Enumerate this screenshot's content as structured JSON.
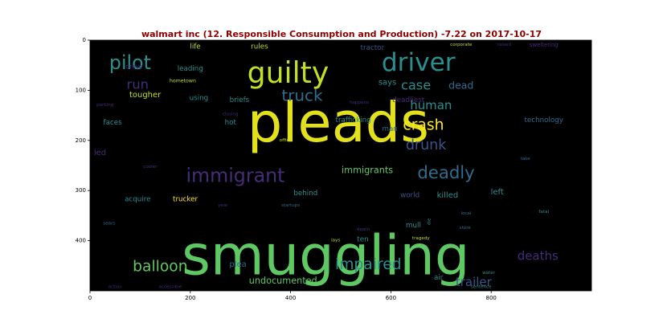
{
  "chart_data": {
    "type": "wordcloud",
    "title": "walmart inc (12. Responsible Consumption and Production) -7.22 on 2017-10-17",
    "background": "#000000",
    "title_color": "#8b0000",
    "xlim": [
      0,
      1000
    ],
    "ylim": [
      500,
      0
    ],
    "x_ticks": [
      "0",
      "200",
      "400",
      "600",
      "800"
    ],
    "y_ticks": [
      "0",
      "100",
      "200",
      "300",
      "400"
    ],
    "words": [
      {
        "text": "pleads",
        "x": 495,
        "y": 165,
        "size": 110,
        "color": "#e3e11b"
      },
      {
        "text": "smuggling",
        "x": 470,
        "y": 430,
        "size": 110,
        "color": "#5ec962"
      },
      {
        "text": "guilty",
        "x": 395,
        "y": 65,
        "size": 58,
        "color": "#c2df23"
      },
      {
        "text": "driver",
        "x": 655,
        "y": 45,
        "size": 50,
        "color": "#2a8f8e"
      },
      {
        "text": "pilot",
        "x": 80,
        "y": 45,
        "size": 38,
        "color": "#2a8f8e"
      },
      {
        "text": "run",
        "x": 95,
        "y": 88,
        "size": 26,
        "color": "#472c7a"
      },
      {
        "text": "truck",
        "x": 423,
        "y": 110,
        "size": 32,
        "color": "#2f6c8e"
      },
      {
        "text": "case",
        "x": 650,
        "y": 90,
        "size": 26,
        "color": "#2a8f8e"
      },
      {
        "text": "dead",
        "x": 740,
        "y": 90,
        "size": 20,
        "color": "#2f6c8e"
      },
      {
        "text": "human",
        "x": 680,
        "y": 130,
        "size": 24,
        "color": "#2a8f8e"
      },
      {
        "text": "crash",
        "x": 665,
        "y": 170,
        "size": 30,
        "color": "#fde725"
      },
      {
        "text": "drunk",
        "x": 670,
        "y": 210,
        "size": 28,
        "color": "#3a538b"
      },
      {
        "text": "immigrant",
        "x": 290,
        "y": 270,
        "size": 38,
        "color": "#472c7a"
      },
      {
        "text": "immigrants",
        "x": 553,
        "y": 260,
        "size": 18,
        "color": "#5ec962"
      },
      {
        "text": "deadly",
        "x": 710,
        "y": 265,
        "size": 34,
        "color": "#2f6c8e"
      },
      {
        "text": "balloon",
        "x": 140,
        "y": 452,
        "size": 30,
        "color": "#5ec962"
      },
      {
        "text": "impaired",
        "x": 555,
        "y": 448,
        "size": 30,
        "color": "#2a8f8e"
      },
      {
        "text": "undocumented",
        "x": 385,
        "y": 480,
        "size": 18,
        "color": "#5ec962"
      },
      {
        "text": "trailer",
        "x": 765,
        "y": 482,
        "size": 24,
        "color": "#3a538b"
      },
      {
        "text": "deaths",
        "x": 893,
        "y": 430,
        "size": 24,
        "color": "#472c7a"
      },
      {
        "text": "plea",
        "x": 295,
        "y": 448,
        "size": 16,
        "color": "#2f6c8e"
      },
      {
        "text": "air",
        "x": 695,
        "y": 474,
        "size": 14,
        "color": "#2a8f8e"
      },
      {
        "text": "life",
        "x": 210,
        "y": 14,
        "size": 14,
        "color": "#c2df23"
      },
      {
        "text": "rules",
        "x": 338,
        "y": 14,
        "size": 14,
        "color": "#c2df23"
      },
      {
        "text": "tractor",
        "x": 563,
        "y": 16,
        "size": 14,
        "color": "#3a538b"
      },
      {
        "text": "corporate",
        "x": 740,
        "y": 10,
        "size": 9,
        "color": "#c2df23"
      },
      {
        "text": "raised",
        "x": 826,
        "y": 10,
        "size": 9,
        "color": "#472c7a"
      },
      {
        "text": "sweltering",
        "x": 905,
        "y": 10,
        "size": 11,
        "color": "#472c7a"
      },
      {
        "text": "drove",
        "x": 88,
        "y": 53,
        "size": 12,
        "color": "#472c7a"
      },
      {
        "text": "leading",
        "x": 200,
        "y": 58,
        "size": 14,
        "color": "#2a8f8e"
      },
      {
        "text": "hometown",
        "x": 185,
        "y": 82,
        "size": 10,
        "color": "#c2df23"
      },
      {
        "text": "says",
        "x": 593,
        "y": 85,
        "size": 16,
        "color": "#2a8f8e"
      },
      {
        "text": "tougher",
        "x": 110,
        "y": 110,
        "size": 16,
        "color": "#c2df23"
      },
      {
        "text": "using",
        "x": 217,
        "y": 116,
        "size": 14,
        "color": "#2a8f8e"
      },
      {
        "text": "briefs",
        "x": 298,
        "y": 120,
        "size": 14,
        "color": "#2a8f8e"
      },
      {
        "text": "parking",
        "x": 30,
        "y": 130,
        "size": 9,
        "color": "#472c7a"
      },
      {
        "text": "closing",
        "x": 280,
        "y": 148,
        "size": 9,
        "color": "#472c7a"
      },
      {
        "text": "happens",
        "x": 537,
        "y": 125,
        "size": 9,
        "color": "#472c7a"
      },
      {
        "text": "deadliest",
        "x": 635,
        "y": 120,
        "size": 14,
        "color": "#472c7a"
      },
      {
        "text": "trafficking",
        "x": 525,
        "y": 160,
        "size": 14,
        "color": "#2a8f8e"
      },
      {
        "text": "technology",
        "x": 905,
        "y": 160,
        "size": 14,
        "color": "#2f6c8e"
      },
      {
        "text": "faces",
        "x": 45,
        "y": 165,
        "size": 14,
        "color": "#2a8f8e"
      },
      {
        "text": "hot",
        "x": 280,
        "y": 165,
        "size": 14,
        "color": "#2a8f8e"
      },
      {
        "text": "man",
        "x": 598,
        "y": 178,
        "size": 14,
        "color": "#2f6c8e"
      },
      {
        "text": "office",
        "x": 390,
        "y": 200,
        "size": 9,
        "color": "#c2df23"
      },
      {
        "text": "led",
        "x": 20,
        "y": 225,
        "size": 16,
        "color": "#472c7a"
      },
      {
        "text": "take",
        "x": 868,
        "y": 237,
        "size": 9,
        "color": "#2f6c8e"
      },
      {
        "text": "cooler",
        "x": 120,
        "y": 253,
        "size": 9,
        "color": "#472c7a"
      },
      {
        "text": "acquire",
        "x": 95,
        "y": 318,
        "size": 14,
        "color": "#2a8f8e"
      },
      {
        "text": "trucker",
        "x": 190,
        "y": 318,
        "size": 14,
        "color": "#fde725"
      },
      {
        "text": "behind",
        "x": 430,
        "y": 306,
        "size": 14,
        "color": "#2a8f8e"
      },
      {
        "text": "startups",
        "x": 400,
        "y": 330,
        "size": 9,
        "color": "#2f6c8e"
      },
      {
        "text": "world",
        "x": 638,
        "y": 310,
        "size": 14,
        "color": "#3a538b"
      },
      {
        "text": "killed",
        "x": 713,
        "y": 310,
        "size": 16,
        "color": "#2a8f8e"
      },
      {
        "text": "left",
        "x": 812,
        "y": 304,
        "size": 16,
        "color": "#2a8f8e"
      },
      {
        "text": "fatal",
        "x": 905,
        "y": 343,
        "size": 9,
        "color": "#2a8f8e"
      },
      {
        "text": "year",
        "x": 265,
        "y": 330,
        "size": 9,
        "color": "#472c7a"
      },
      {
        "text": "local",
        "x": 750,
        "y": 346,
        "size": 9,
        "color": "#2f6c8e"
      },
      {
        "text": "sears",
        "x": 38,
        "y": 366,
        "size": 9,
        "color": "#2f6c8e"
      },
      {
        "text": "mull",
        "x": 645,
        "y": 370,
        "size": 14,
        "color": "#2a8f8e"
      },
      {
        "text": "die",
        "x": 677,
        "y": 362,
        "size": 9,
        "color": "#2a8f8e",
        "rotate": true
      },
      {
        "text": "store",
        "x": 748,
        "y": 375,
        "size": 9,
        "color": "#2f6c8e"
      },
      {
        "text": "death",
        "x": 545,
        "y": 378,
        "size": 9,
        "color": "#472c7a"
      },
      {
        "text": "ten",
        "x": 544,
        "y": 398,
        "size": 14,
        "color": "#2a8f8e"
      },
      {
        "text": "lays",
        "x": 490,
        "y": 400,
        "size": 9,
        "color": "#c2df23"
      },
      {
        "text": "tragedy",
        "x": 660,
        "y": 396,
        "size": 9,
        "color": "#c2df23"
      },
      {
        "text": "water",
        "x": 795,
        "y": 465,
        "size": 9,
        "color": "#2a8f8e"
      },
      {
        "text": "action",
        "x": 50,
        "y": 493,
        "size": 9,
        "color": "#472c7a"
      },
      {
        "text": "accessible",
        "x": 160,
        "y": 493,
        "size": 9,
        "color": "#472c7a"
      },
      {
        "text": "sentence",
        "x": 780,
        "y": 493,
        "size": 9,
        "color": "#2a8f8e"
      }
    ]
  }
}
